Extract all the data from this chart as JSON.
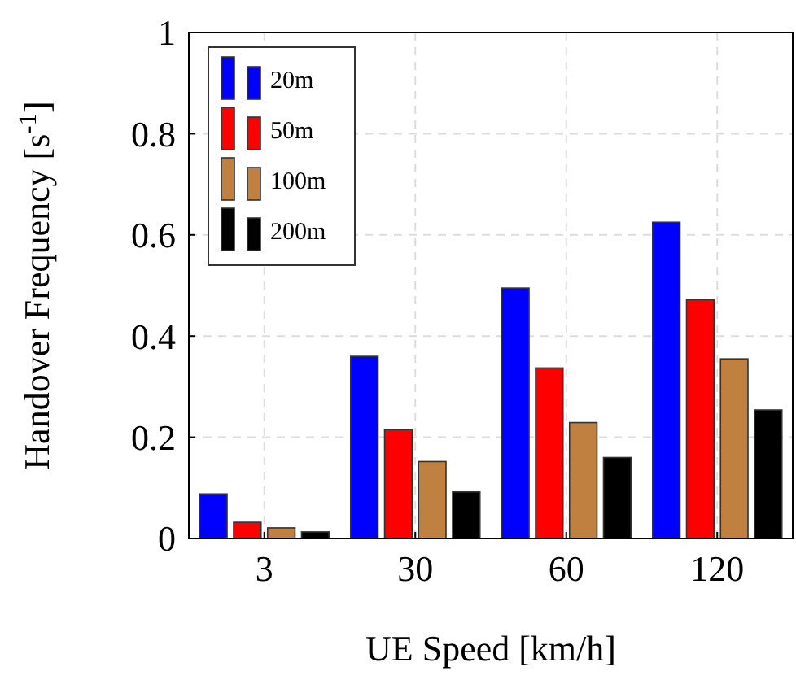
{
  "chart_data": {
    "type": "bar",
    "xlabel": "UE Speed [km/h]",
    "ylabel": "Handover Frequency [s$^{-1}$]",
    "categories": [
      "3",
      "30",
      "60",
      "120"
    ],
    "series": [
      {
        "name": "20m",
        "color": "#0000ff",
        "values": [
          0.088,
          0.36,
          0.495,
          0.625
        ]
      },
      {
        "name": "50m",
        "color": "#ff0000",
        "values": [
          0.032,
          0.215,
          0.337,
          0.472
        ]
      },
      {
        "name": "100m",
        "color": "#bf8040",
        "values": [
          0.021,
          0.152,
          0.229,
          0.355
        ]
      },
      {
        "name": "200m",
        "color": "#000000",
        "values": [
          0.013,
          0.092,
          0.16,
          0.254
        ]
      }
    ],
    "ylim": [
      0,
      1
    ],
    "yticks": [
      0,
      0.2,
      0.4,
      0.6,
      0.8,
      1
    ],
    "grid": true,
    "legend": "top left"
  }
}
